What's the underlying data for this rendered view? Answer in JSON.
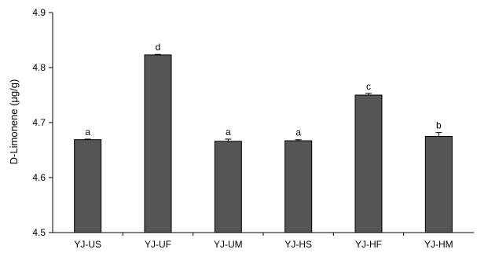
{
  "chart_data": {
    "type": "bar",
    "title": "",
    "xlabel": "",
    "ylabel": "D-Limonene (μg/g)",
    "ylim": [
      4.5,
      4.9
    ],
    "yticks": [
      "4.5",
      "4.6",
      "4.7",
      "4.8",
      "4.9"
    ],
    "grid": false,
    "categories": [
      "YJ-US",
      "YJ-UF",
      "YJ-UM",
      "YJ-HS",
      "YJ-HF",
      "YJ-HM"
    ],
    "values": [
      4.669,
      4.823,
      4.666,
      4.667,
      4.75,
      4.675
    ],
    "errors": [
      0.001,
      0.001,
      0.004,
      0.002,
      0.003,
      0.007
    ],
    "labels": [
      "a",
      "d",
      "a",
      "a",
      "c",
      "b"
    ],
    "bar_color": "#555555"
  }
}
